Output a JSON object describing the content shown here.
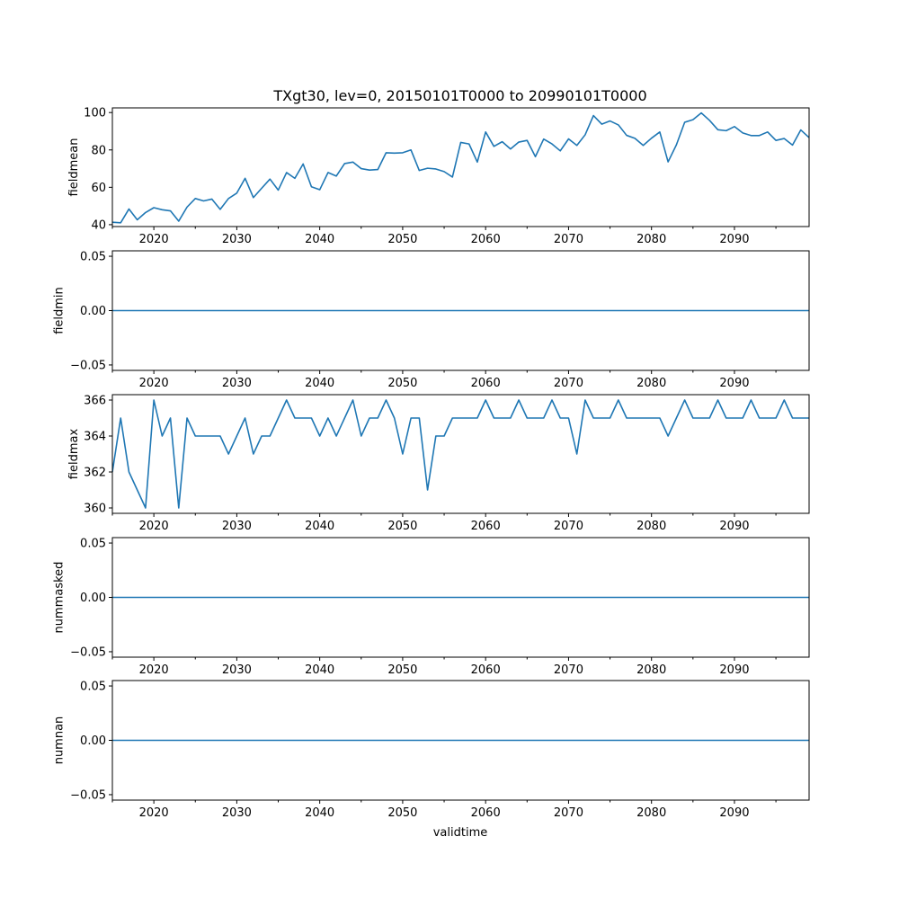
{
  "chart_data": {
    "type": "line",
    "title": "TXgt30, lev=0, 20150101T0000 to 20990101T0000",
    "xlabel": "validtime",
    "series_color": "#1f77b4",
    "x": [
      2015,
      2016,
      2017,
      2018,
      2019,
      2020,
      2021,
      2022,
      2023,
      2024,
      2025,
      2026,
      2027,
      2028,
      2029,
      2030,
      2031,
      2032,
      2033,
      2034,
      2035,
      2036,
      2037,
      2038,
      2039,
      2040,
      2041,
      2042,
      2043,
      2044,
      2045,
      2046,
      2047,
      2048,
      2049,
      2050,
      2051,
      2052,
      2053,
      2054,
      2055,
      2056,
      2057,
      2058,
      2059,
      2060,
      2061,
      2062,
      2063,
      2064,
      2065,
      2066,
      2067,
      2068,
      2069,
      2070,
      2071,
      2072,
      2073,
      2074,
      2075,
      2076,
      2077,
      2078,
      2079,
      2080,
      2081,
      2082,
      2083,
      2084,
      2085,
      2086,
      2087,
      2088,
      2089,
      2090,
      2091,
      2092,
      2093,
      2094,
      2095,
      2096,
      2097,
      2098,
      2099
    ],
    "xlim": [
      2015,
      2099
    ],
    "xticks": [
      2020,
      2030,
      2040,
      2050,
      2060,
      2070,
      2080,
      2090
    ],
    "xtick_labels": [
      "2020",
      "2030",
      "2040",
      "2050",
      "2060",
      "2070",
      "2080",
      "2090"
    ],
    "xminor_ticks": [
      2015,
      2025,
      2035,
      2045,
      2055,
      2065,
      2075,
      2085,
      2095
    ],
    "panels": [
      {
        "ylabel": "fieldmean",
        "ylim": [
          39,
          102.5
        ],
        "yticks": [
          40,
          60,
          80,
          100
        ],
        "ytick_labels": [
          "40",
          "60",
          "80",
          "100"
        ],
        "values": [
          41.3,
          41.0,
          48.4,
          42.6,
          46.5,
          49.1,
          48.0,
          47.4,
          41.9,
          49.4,
          54.0,
          52.7,
          53.7,
          48.2,
          54.0,
          56.9,
          64.8,
          54.5,
          59.5,
          64.4,
          58.5,
          67.9,
          64.8,
          72.5,
          60.3,
          58.7,
          67.9,
          66.0,
          72.7,
          73.5,
          70.0,
          69.2,
          69.5,
          78.5,
          78.3,
          78.5,
          80.0,
          69.0,
          70.2,
          69.8,
          68.4,
          65.5,
          84.0,
          83.2,
          73.5,
          89.6,
          81.9,
          84.4,
          80.5,
          84.2,
          85.1,
          76.4,
          85.8,
          83.2,
          79.5,
          85.9,
          82.4,
          88.1,
          98.4,
          93.8,
          95.5,
          93.4,
          87.8,
          86.2,
          82.4,
          86.3,
          89.6,
          73.6,
          82.7,
          94.8,
          96.2,
          99.8,
          95.8,
          90.8,
          90.3,
          92.5,
          89.1,
          87.7,
          87.7,
          89.6,
          85.1,
          86.1,
          82.6,
          90.7,
          86.6
        ]
      },
      {
        "ylabel": "fieldmin",
        "ylim": [
          -0.055,
          0.055
        ],
        "yticks": [
          -0.05,
          0.0,
          0.05
        ],
        "ytick_labels": [
          "−0.05",
          "0.00",
          "0.05"
        ],
        "values": [
          0,
          0,
          0,
          0,
          0,
          0,
          0,
          0,
          0,
          0,
          0,
          0,
          0,
          0,
          0,
          0,
          0,
          0,
          0,
          0,
          0,
          0,
          0,
          0,
          0,
          0,
          0,
          0,
          0,
          0,
          0,
          0,
          0,
          0,
          0,
          0,
          0,
          0,
          0,
          0,
          0,
          0,
          0,
          0,
          0,
          0,
          0,
          0,
          0,
          0,
          0,
          0,
          0,
          0,
          0,
          0,
          0,
          0,
          0,
          0,
          0,
          0,
          0,
          0,
          0,
          0,
          0,
          0,
          0,
          0,
          0,
          0,
          0,
          0,
          0,
          0,
          0,
          0,
          0,
          0,
          0,
          0,
          0,
          0,
          0
        ]
      },
      {
        "ylabel": "fieldmax",
        "ylim": [
          359.7,
          366.3
        ],
        "yticks": [
          360,
          362,
          364,
          366
        ],
        "ytick_labels": [
          "360",
          "362",
          "364",
          "366"
        ],
        "values": [
          362,
          365,
          362,
          361,
          360,
          366,
          364,
          365,
          360,
          365,
          364,
          364,
          364,
          364,
          363,
          364,
          365,
          363,
          364,
          364,
          365,
          366,
          365,
          365,
          365,
          364,
          365,
          364,
          365,
          366,
          364,
          365,
          365,
          366,
          365,
          363,
          365,
          365,
          361,
          364,
          364,
          365,
          365,
          365,
          365,
          366,
          365,
          365,
          365,
          366,
          365,
          365,
          365,
          366,
          365,
          365,
          363,
          366,
          365,
          365,
          365,
          366,
          365,
          365,
          365,
          365,
          365,
          364,
          365,
          366,
          365,
          365,
          365,
          366,
          365,
          365,
          365,
          366,
          365,
          365,
          365,
          366,
          365,
          365,
          365
        ]
      },
      {
        "ylabel": "nummasked",
        "ylim": [
          -0.055,
          0.055
        ],
        "yticks": [
          -0.05,
          0.0,
          0.05
        ],
        "ytick_labels": [
          "−0.05",
          "0.00",
          "0.05"
        ],
        "values": [
          0,
          0,
          0,
          0,
          0,
          0,
          0,
          0,
          0,
          0,
          0,
          0,
          0,
          0,
          0,
          0,
          0,
          0,
          0,
          0,
          0,
          0,
          0,
          0,
          0,
          0,
          0,
          0,
          0,
          0,
          0,
          0,
          0,
          0,
          0,
          0,
          0,
          0,
          0,
          0,
          0,
          0,
          0,
          0,
          0,
          0,
          0,
          0,
          0,
          0,
          0,
          0,
          0,
          0,
          0,
          0,
          0,
          0,
          0,
          0,
          0,
          0,
          0,
          0,
          0,
          0,
          0,
          0,
          0,
          0,
          0,
          0,
          0,
          0,
          0,
          0,
          0,
          0,
          0,
          0,
          0,
          0,
          0,
          0,
          0
        ]
      },
      {
        "ylabel": "numnan",
        "ylim": [
          -0.055,
          0.055
        ],
        "yticks": [
          -0.05,
          0.0,
          0.05
        ],
        "ytick_labels": [
          "−0.05",
          "0.00",
          "0.05"
        ],
        "values": [
          0,
          0,
          0,
          0,
          0,
          0,
          0,
          0,
          0,
          0,
          0,
          0,
          0,
          0,
          0,
          0,
          0,
          0,
          0,
          0,
          0,
          0,
          0,
          0,
          0,
          0,
          0,
          0,
          0,
          0,
          0,
          0,
          0,
          0,
          0,
          0,
          0,
          0,
          0,
          0,
          0,
          0,
          0,
          0,
          0,
          0,
          0,
          0,
          0,
          0,
          0,
          0,
          0,
          0,
          0,
          0,
          0,
          0,
          0,
          0,
          0,
          0,
          0,
          0,
          0,
          0,
          0,
          0,
          0,
          0,
          0,
          0,
          0,
          0,
          0,
          0,
          0,
          0,
          0,
          0,
          0,
          0,
          0,
          0,
          0
        ]
      }
    ]
  }
}
